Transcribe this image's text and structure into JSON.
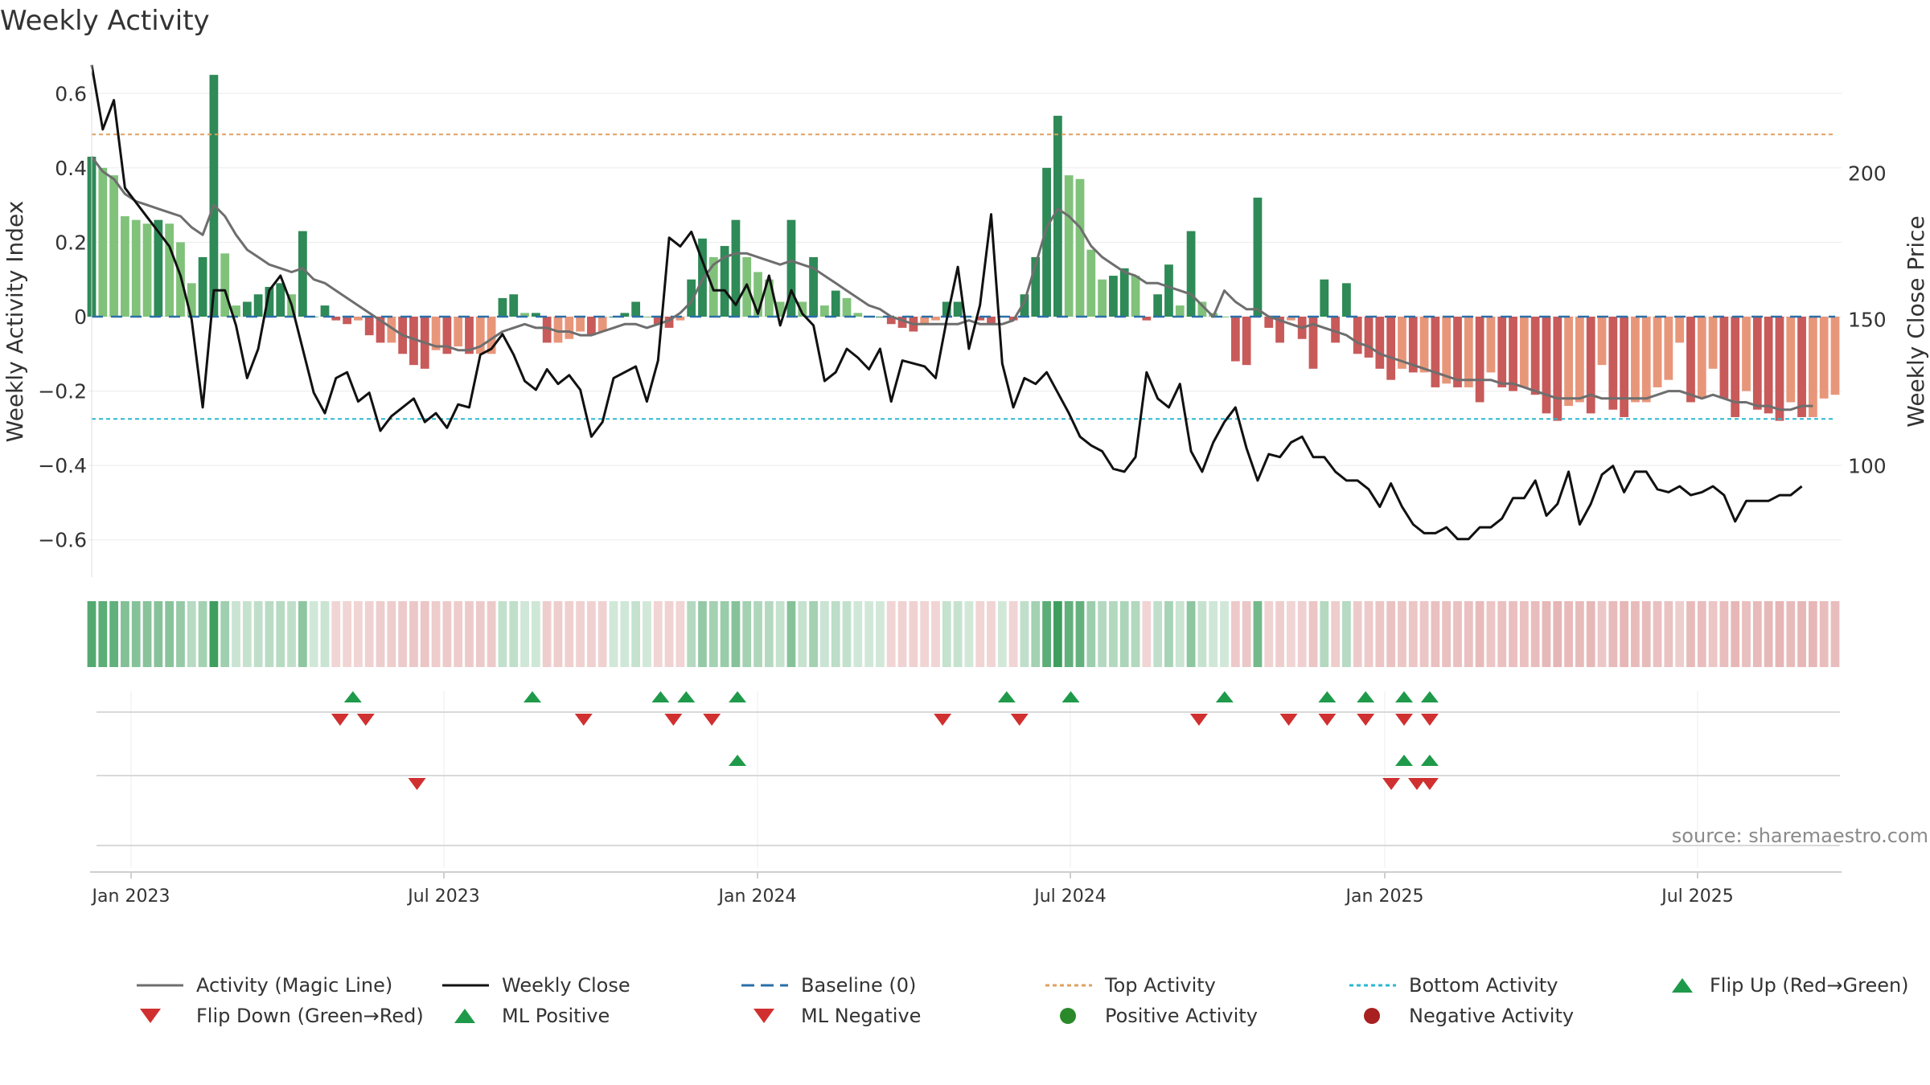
{
  "title": "Weekly Activity",
  "source": "source: sharemaestro.com",
  "colors": {
    "dark_green": "#2e8a57",
    "light_green": "#80c27a",
    "dark_red": "#c85a5a",
    "light_red": "#e8967a",
    "magic_line": "#6e6e6e",
    "close": "#111111",
    "baseline": "#2a6fa8",
    "top": "#e0a060",
    "bottom": "#2ab8d0",
    "flip_up": "#1f9a4a",
    "flip_down": "#d03030",
    "pos_dot": "#2a8a2a",
    "neg_dot": "#a82020"
  },
  "chart_data": {
    "type": "bar",
    "title": "Weekly Activity",
    "ylabel": "Weekly Activity Index",
    "y2label": "Weekly Close Price",
    "ylim": [
      -0.7,
      0.7
    ],
    "y2lim": [
      62,
      240
    ],
    "yticks": [
      0.6,
      0.4,
      0.2,
      0,
      -0.2,
      -0.4,
      -0.6
    ],
    "ytick_labels": [
      "0.6",
      "0.4",
      "0.2",
      "0",
      "−0.2",
      "−0.4",
      "−0.6"
    ],
    "y2ticks": [
      200,
      150,
      100
    ],
    "y2tick_labels": [
      "200",
      "150",
      "100"
    ],
    "x_ticks": [
      "Jan 2023",
      "Jul 2023",
      "Jan 2024",
      "Jul 2024",
      "Jan 2025",
      "Jul 2025"
    ],
    "top_activity": 0.49,
    "bottom_activity": -0.275,
    "activity": [
      0.43,
      0.4,
      0.38,
      0.27,
      0.26,
      0.25,
      0.26,
      0.25,
      0.2,
      0.09,
      0.16,
      0.65,
      0.17,
      0.03,
      0.04,
      0.06,
      0.08,
      0.09,
      0.06,
      0.23,
      0.0,
      0.03,
      -0.01,
      -0.02,
      -0.01,
      -0.05,
      -0.07,
      -0.07,
      -0.1,
      -0.13,
      -0.14,
      -0.09,
      -0.1,
      -0.08,
      -0.1,
      -0.1,
      -0.1,
      0.05,
      0.06,
      0.01,
      0.01,
      -0.07,
      -0.07,
      -0.06,
      -0.04,
      -0.05,
      -0.04,
      0.0,
      0.01,
      0.04,
      0.0,
      -0.02,
      -0.03,
      -0.01,
      0.1,
      0.21,
      0.16,
      0.19,
      0.26,
      0.16,
      0.12,
      0.1,
      0.04,
      0.26,
      0.04,
      0.16,
      0.03,
      0.07,
      0.05,
      0.01,
      0.0,
      0.0,
      -0.02,
      -0.03,
      -0.04,
      -0.02,
      -0.01,
      0.04,
      0.04,
      0.0,
      -0.01,
      -0.02,
      0.0,
      -0.01,
      0.06,
      0.16,
      0.4,
      0.54,
      0.38,
      0.37,
      0.18,
      0.1,
      0.11,
      0.13,
      0.11,
      -0.01,
      0.06,
      0.14,
      0.03,
      0.23,
      0.04,
      0.01,
      0.0,
      -0.12,
      -0.13,
      0.32,
      -0.03,
      -0.07,
      -0.01,
      -0.06,
      -0.14,
      0.1,
      -0.07,
      0.09,
      -0.1,
      -0.11,
      -0.14,
      -0.17,
      -0.14,
      -0.15,
      -0.15,
      -0.19,
      -0.18,
      -0.19,
      -0.19,
      -0.23,
      -0.15,
      -0.19,
      -0.2,
      -0.19,
      -0.21,
      -0.26,
      -0.28,
      -0.24,
      -0.23,
      -0.26,
      -0.13,
      -0.25,
      -0.27,
      -0.23,
      -0.23,
      -0.19,
      -0.17,
      -0.07,
      -0.23,
      -0.22,
      -0.14,
      -0.22,
      -0.27,
      -0.2,
      -0.25,
      -0.26,
      -0.28,
      -0.23,
      -0.27,
      -0.27,
      -0.22,
      -0.21
    ],
    "magic_line": [
      0.43,
      0.39,
      0.37,
      0.33,
      0.31,
      0.3,
      0.29,
      0.28,
      0.27,
      0.24,
      0.22,
      0.3,
      0.27,
      0.22,
      0.18,
      0.16,
      0.14,
      0.13,
      0.12,
      0.13,
      0.1,
      0.09,
      0.07,
      0.05,
      0.03,
      0.01,
      -0.01,
      -0.03,
      -0.05,
      -0.06,
      -0.07,
      -0.08,
      -0.08,
      -0.09,
      -0.09,
      -0.08,
      -0.06,
      -0.04,
      -0.03,
      -0.02,
      -0.03,
      -0.03,
      -0.04,
      -0.04,
      -0.05,
      -0.05,
      -0.04,
      -0.03,
      -0.02,
      -0.02,
      -0.03,
      -0.02,
      -0.01,
      0.01,
      0.04,
      0.1,
      0.14,
      0.16,
      0.17,
      0.17,
      0.16,
      0.15,
      0.14,
      0.15,
      0.14,
      0.13,
      0.11,
      0.09,
      0.07,
      0.05,
      0.03,
      0.02,
      0.0,
      -0.01,
      -0.02,
      -0.02,
      -0.02,
      -0.02,
      -0.02,
      -0.01,
      -0.02,
      -0.02,
      -0.02,
      -0.01,
      0.04,
      0.14,
      0.24,
      0.29,
      0.27,
      0.24,
      0.19,
      0.16,
      0.14,
      0.12,
      0.11,
      0.09,
      0.09,
      0.08,
      0.07,
      0.06,
      0.03,
      0.0,
      0.07,
      0.04,
      0.02,
      0.02,
      0.0,
      -0.01,
      -0.02,
      -0.03,
      -0.02,
      -0.03,
      -0.04,
      -0.05,
      -0.07,
      -0.08,
      -0.1,
      -0.11,
      -0.12,
      -0.13,
      -0.14,
      -0.15,
      -0.16,
      -0.17,
      -0.17,
      -0.17,
      -0.17,
      -0.18,
      -0.18,
      -0.19,
      -0.2,
      -0.21,
      -0.22,
      -0.22,
      -0.22,
      -0.21,
      -0.22,
      -0.22,
      -0.22,
      -0.22,
      -0.22,
      -0.21,
      -0.2,
      -0.2,
      -0.21,
      -0.22,
      -0.21,
      -0.22,
      -0.23,
      -0.23,
      -0.24,
      -0.24,
      -0.25,
      -0.25,
      -0.24,
      -0.24
    ],
    "weekly_close": [
      237,
      215,
      225,
      195,
      190,
      185,
      180,
      175,
      165,
      150,
      120,
      160,
      160,
      148,
      130,
      140,
      160,
      165,
      155,
      140,
      125,
      118,
      130,
      132,
      122,
      125,
      112,
      117,
      120,
      123,
      115,
      118,
      113,
      121,
      120,
      138,
      140,
      145,
      138,
      129,
      126,
      133,
      128,
      131,
      126,
      110,
      115,
      130,
      132,
      134,
      122,
      136,
      178,
      175,
      180,
      170,
      160,
      160,
      155,
      162,
      152,
      165,
      148,
      160,
      152,
      148,
      129,
      132,
      140,
      137,
      133,
      140,
      122,
      136,
      135,
      134,
      130,
      150,
      168,
      140,
      155,
      186,
      135,
      120,
      130,
      128,
      132,
      125,
      118,
      110,
      107,
      105,
      99,
      98,
      103,
      132,
      123,
      120,
      128,
      105,
      98,
      108,
      115,
      120,
      106,
      95,
      104,
      103,
      108,
      110,
      103,
      103,
      98,
      95,
      95,
      92,
      86,
      94,
      86,
      80,
      77,
      77,
      79,
      75,
      75,
      79,
      79,
      82,
      89,
      89,
      95,
      83,
      87,
      98,
      80,
      87,
      97,
      100,
      91,
      98,
      98,
      92,
      91,
      93,
      90,
      91,
      93,
      90,
      81,
      88,
      88,
      88,
      90,
      90,
      93
    ]
  },
  "axes": {
    "y_label": "Weekly Activity Index",
    "y2_label": "Weekly Close Price"
  },
  "strip": {
    "signals": {
      "flip_up": [
        20,
        34,
        44,
        46,
        50,
        71,
        76,
        88,
        96,
        99,
        102,
        104
      ],
      "flip_down": [
        19,
        21,
        38,
        45,
        48,
        66,
        72,
        86,
        93,
        96,
        99,
        102,
        104
      ],
      "ml_positive": [
        50,
        102,
        104
      ],
      "ml_negative": [
        25,
        101,
        103,
        104
      ]
    }
  },
  "legend": [
    {
      "label": "Activity (Magic Line)",
      "marker": "line-grey"
    },
    {
      "label": "Weekly Close",
      "marker": "line-black"
    },
    {
      "label": "Baseline (0)",
      "marker": "dash-blue"
    },
    {
      "label": "Top Activity",
      "marker": "dot-orange"
    },
    {
      "label": "Bottom Activity",
      "marker": "dot-cyan"
    },
    {
      "label": "Flip Up (Red→Green)",
      "marker": "tri-up-green"
    },
    {
      "label": "Flip Down (Green→Red)",
      "marker": "tri-down-red"
    },
    {
      "label": "ML Positive",
      "marker": "tri-up-green"
    },
    {
      "label": "ML Negative",
      "marker": "tri-down-red"
    },
    {
      "label": "Positive Activity",
      "marker": "circle-green"
    },
    {
      "label": "Negative Activity",
      "marker": "circle-red"
    }
  ]
}
